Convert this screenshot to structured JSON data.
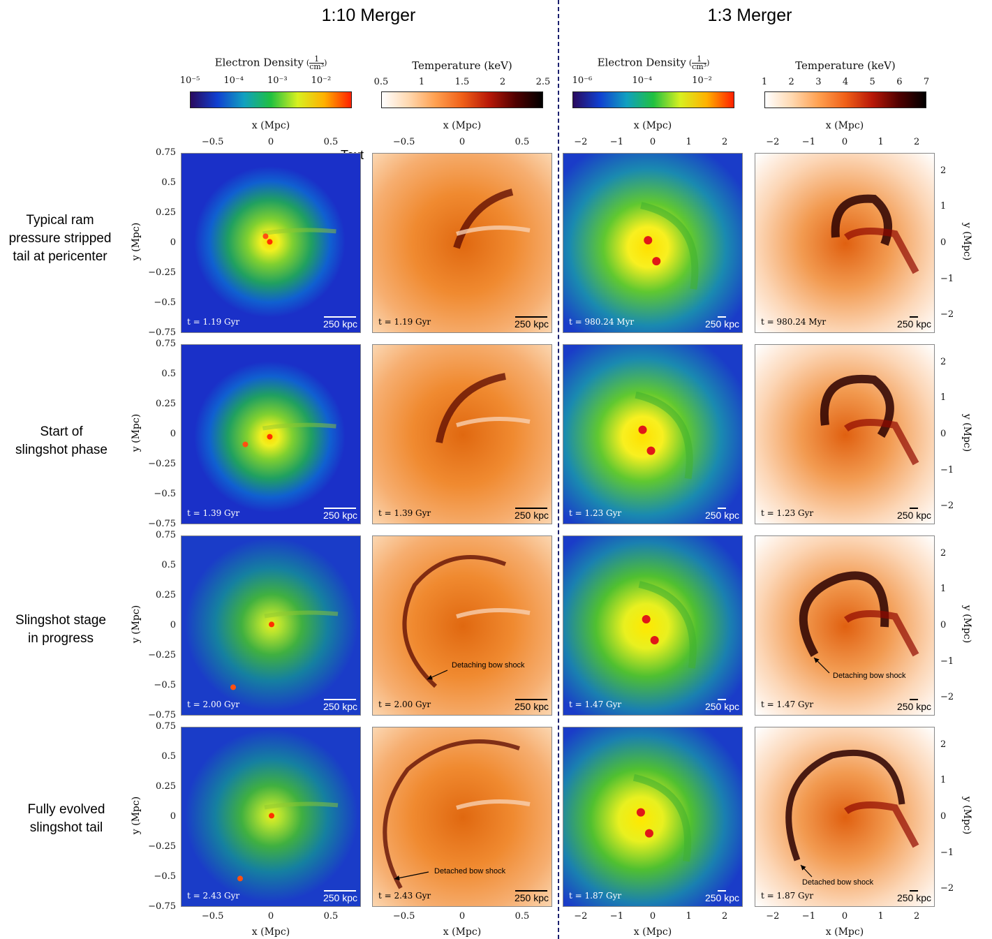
{
  "headers": {
    "left": "1:10 Merger",
    "right": "1:3 Merger"
  },
  "stray_text": "Text",
  "rows": [
    {
      "label_lines": [
        "Typical ram",
        "pressure stripped",
        "tail at pericenter"
      ],
      "times": [
        "t = 1.19 Gyr",
        "t = 1.19 Gyr",
        "t = 980.24 Myr",
        "t = 980.24 Myr"
      ]
    },
    {
      "label_lines": [
        "Start of",
        "slingshot phase"
      ],
      "times": [
        "t = 1.39 Gyr",
        "t = 1.39 Gyr",
        "t = 1.23 Gyr",
        "t = 1.23 Gyr"
      ]
    },
    {
      "label_lines": [
        "Slingshot stage",
        "in progress"
      ],
      "times": [
        "t = 2.00 Gyr",
        "t = 2.00 Gyr",
        "t = 1.47 Gyr",
        "t = 1.47 Gyr"
      ]
    },
    {
      "label_lines": [
        "Fully evolved",
        "slingshot tail"
      ],
      "times": [
        "t = 2.43 Gyr",
        "t = 2.43 Gyr",
        "t = 1.87 Gyr",
        "t = 1.87 Gyr"
      ]
    }
  ],
  "scalebar": "250 kpc",
  "annotations": {
    "r3_temp_left": "Detaching bow shock",
    "r3_temp_right": "Detaching bow shock",
    "r4_temp_left": "Detached bow shock",
    "r4_temp_right": "Detached bow shock"
  },
  "colorbars": [
    {
      "label": "Electron Density",
      "unit_num": "1",
      "unit_den": "cm³",
      "ticks": [
        "10⁻⁵",
        "10⁻⁴",
        "10⁻³",
        "10⁻²"
      ],
      "colors": [
        "#2a0a5e",
        "#1040d0",
        "#10a0c0",
        "#20c040",
        "#d8f020",
        "#ffb000",
        "#ff2000"
      ]
    },
    {
      "label": "Temperature (keV)",
      "ticks": [
        "0.5",
        "1",
        "1.5",
        "2",
        "2.5"
      ],
      "colors": [
        "#ffffff",
        "#ffd8b0",
        "#ffa050",
        "#f06018",
        "#b81808",
        "#500000",
        "#000000"
      ]
    },
    {
      "label": "Electron Density",
      "unit_num": "1",
      "unit_den": "cm³",
      "ticks": [
        "10⁻⁶",
        "10⁻⁴",
        "10⁻²"
      ],
      "colors": [
        "#2a0a5e",
        "#1040d0",
        "#10a0c0",
        "#20c040",
        "#d8f020",
        "#ffb000",
        "#ff2000"
      ]
    },
    {
      "label": "Temperature (keV)",
      "ticks": [
        "1",
        "2",
        "3",
        "4",
        "5",
        "6",
        "7"
      ],
      "colors": [
        "#ffffff",
        "#ffd8b0",
        "#ffa050",
        "#f06018",
        "#b81808",
        "#500000",
        "#000000"
      ]
    }
  ],
  "axes": {
    "x_label": "x (Mpc)",
    "y_label": "y (Mpc)",
    "x_ticks_small": [
      "−0.5",
      "0",
      "0.5"
    ],
    "x_ticks_large": [
      "−2",
      "−1",
      "0",
      "1",
      "2"
    ],
    "y_ticks_left": [
      "0.75",
      "0.5",
      "0.25",
      "0",
      "−0.25",
      "−0.5",
      "−0.75"
    ],
    "y_ticks_right": [
      "2",
      "1",
      "0",
      "−1",
      "−2"
    ]
  }
}
